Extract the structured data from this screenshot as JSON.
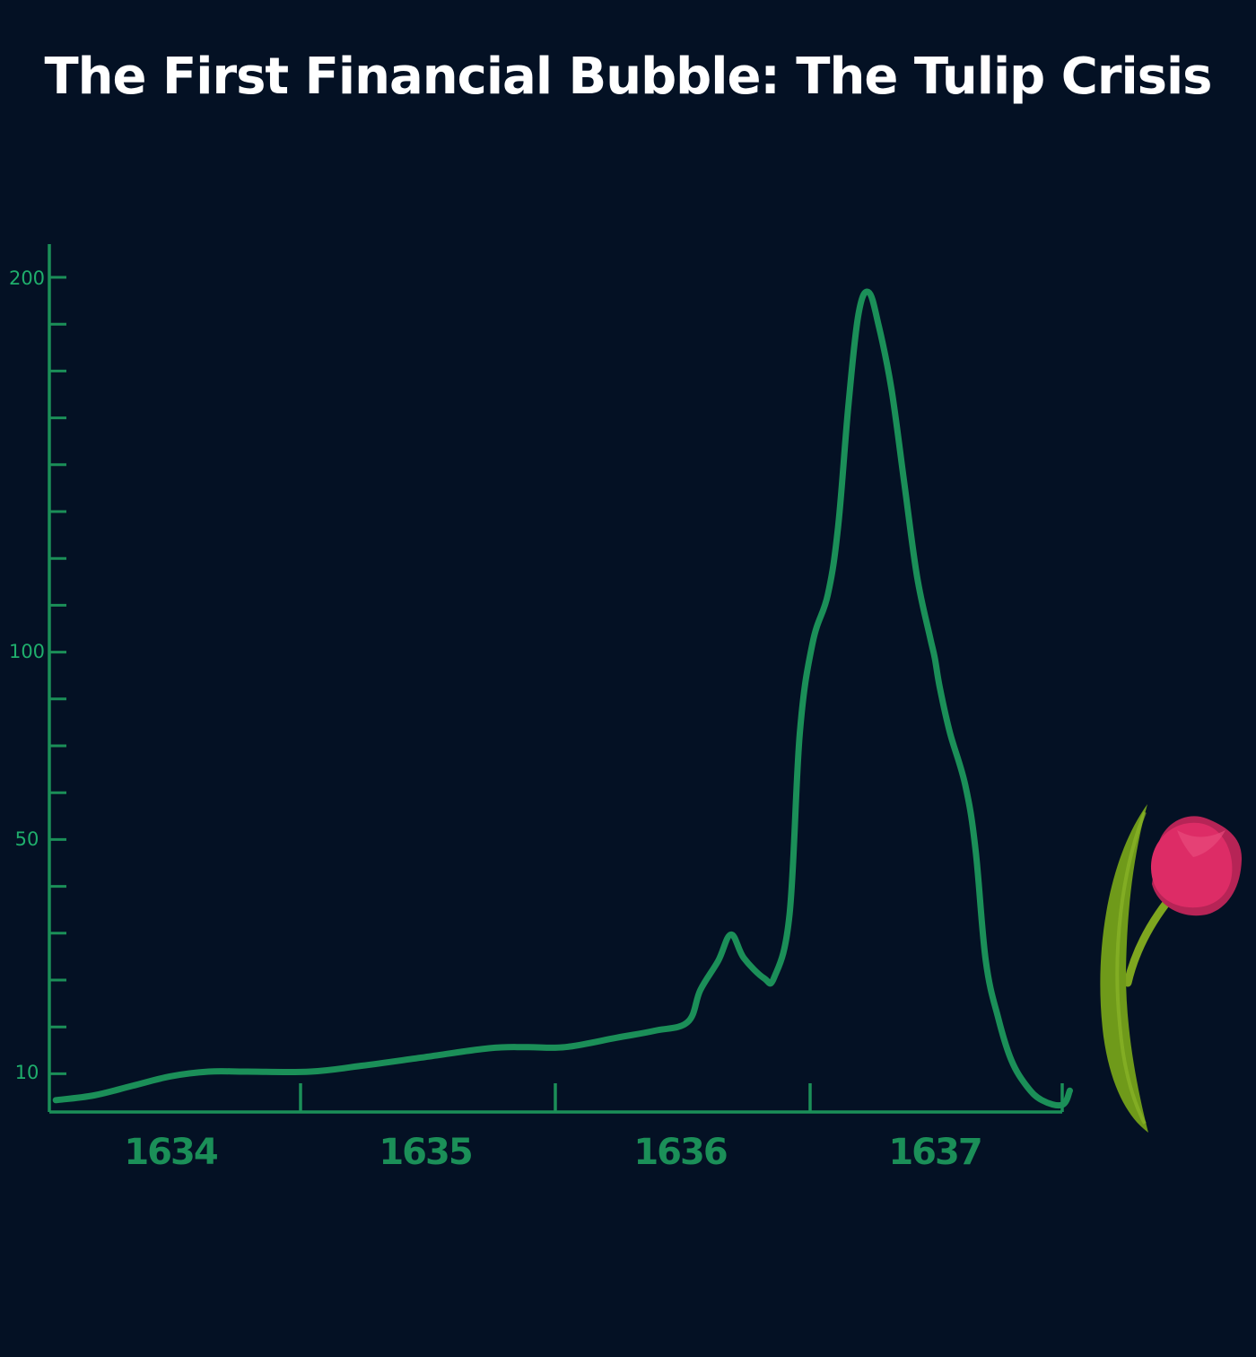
{
  "title": "The First Financial Bubble: The Tulip Crisis",
  "colors": {
    "background": "#041124",
    "line": "#1b8f58",
    "title": "#ffffff",
    "tulip_petal": "#dd2c66",
    "tulip_petal_dark": "#b62456",
    "tulip_stem": "#6f9a1a"
  },
  "decoration": {
    "icon": "tulip-icon"
  },
  "chart_data": {
    "type": "line",
    "title": "The First Financial Bubble: The Tulip Crisis",
    "xlabel": "",
    "ylabel": "",
    "x_tick_labels": [
      "1634",
      "1635",
      "1636",
      "1637"
    ],
    "y_tick_labels": [
      "10",
      "50",
      "100",
      "200"
    ],
    "x_ticks": [
      1634.0,
      1635.0,
      1636.0,
      1637.0
    ],
    "y_ticks": [
      10,
      50,
      100,
      200
    ],
    "xlim": [
      1633.55,
      1637.53
    ],
    "y_axis": {
      "scale": "piecewise",
      "tick_values": [
        10,
        50,
        100,
        200
      ]
    },
    "grid": false,
    "legend": "none",
    "series": [
      {
        "x": [
          1633.55,
          1633.7,
          1633.85,
          1634.0,
          1634.15,
          1634.3,
          1634.55,
          1634.75,
          1635.0,
          1635.25,
          1635.4,
          1635.55,
          1635.75,
          1635.9,
          1636.03,
          1636.08,
          1636.15,
          1636.2,
          1636.25,
          1636.33,
          1636.37,
          1636.43,
          1636.47,
          1636.52,
          1636.58,
          1636.62,
          1636.66,
          1636.7,
          1636.74,
          1636.78,
          1636.83,
          1636.88,
          1636.93,
          1636.98,
          1637.0,
          1637.02,
          1637.06,
          1637.12,
          1637.16,
          1637.2,
          1637.25,
          1637.3,
          1637.36,
          1637.42,
          1637.5,
          1637.53
        ],
        "values": [
          7.0,
          7.5,
          8.5,
          9.5,
          10.0,
          10.0,
          10.0,
          11.0,
          12.5,
          14.0,
          14.2,
          14.2,
          15.8,
          17.0,
          18.5,
          24.0,
          29.0,
          33.5,
          29.5,
          26.0,
          26.2,
          37.0,
          78.0,
          102.0,
          115.0,
          133.0,
          165.0,
          190.0,
          196.0,
          187.0,
          170.0,
          145.0,
          120.0,
          104.0,
          98.0,
          90.0,
          78.0,
          64.0,
          48.0,
          29.0,
          19.0,
          12.0,
          8.5,
          7.0,
          6.5,
          8.0
        ]
      }
    ]
  }
}
